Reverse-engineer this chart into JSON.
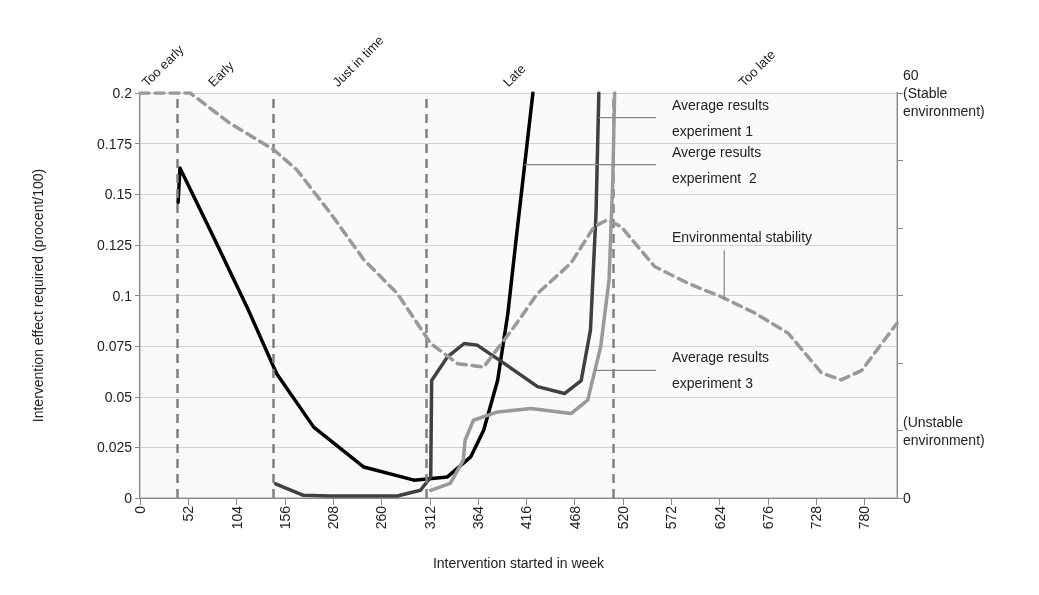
{
  "chart_data": {
    "type": "line",
    "xlabel": "Intervention started in week",
    "ylabel": "Intervention effect required (procent/100)",
    "xlim": [
      0,
      815
    ],
    "xticks": [
      0,
      52,
      104,
      156,
      208,
      260,
      312,
      364,
      416,
      468,
      520,
      572,
      624,
      676,
      728,
      780
    ],
    "ylim": [
      0,
      0.2
    ],
    "yticks": [
      0,
      0.025,
      0.05,
      0.075,
      0.1,
      0.125,
      0.15,
      0.175,
      0.2
    ],
    "y2lim": [
      0,
      60
    ],
    "y2ticks": [
      0,
      {
        "value": 10,
        "label": "(Unstable environment)"
      },
      {
        "value": 20,
        "label": null
      },
      {
        "value": 30,
        "label": null
      },
      {
        "value": 40,
        "label": null
      },
      {
        "value": 50,
        "label": null
      },
      {
        "value": 60,
        "label": "60 (Stable environment)"
      }
    ],
    "grid": "y",
    "marker": "none",
    "series": [
      {
        "color": "#000000",
        "x": [
          41,
          43,
          79,
          115,
          147,
          187,
          241,
          295,
          331,
          356,
          370,
          385,
          396,
          406,
          423
        ],
        "values": [
          0.146,
          0.163,
          0.129,
          0.0945,
          0.0615,
          0.035,
          0.0153,
          0.0088,
          0.0104,
          0.0203,
          0.0335,
          0.058,
          0.091,
          0.132,
          0.2
        ]
      },
      {
        "color": "#404040",
        "x": [
          146,
          176,
          205,
          277,
          302,
          313,
          314,
          331,
          349,
          363,
          392,
          428,
          457,
          475,
          485,
          491,
          494
        ],
        "values": [
          0.007,
          0.0013,
          0.001,
          0.001,
          0.0038,
          0.0104,
          0.058,
          0.0697,
          0.0763,
          0.0755,
          0.0665,
          0.055,
          0.0516,
          0.058,
          0.083,
          0.141,
          0.2
        ]
      },
      {
        "color": "#999999",
        "x": [
          313,
          334,
          348,
          350,
          359,
          385,
          421,
          464,
          482,
          496,
          505,
          509,
          511
        ],
        "values": [
          0.0038,
          0.0072,
          0.0186,
          0.0285,
          0.0384,
          0.0425,
          0.0442,
          0.0417,
          0.0483,
          0.0747,
          0.1077,
          0.157,
          0.2
        ]
      },
      {
        "color": "#999999",
        "axis": "y2",
        "line_style": "dashed",
        "x": [
          0,
          54,
          97,
          144,
          169,
          205,
          241,
          277,
          313,
          342,
          370,
          403,
          428,
          464,
          489,
          503,
          518,
          554,
          590,
          626,
          662,
          698,
          734,
          755,
          777,
          815
        ],
        "values": [
          60,
          60,
          55.5,
          51.6,
          48.6,
          42.2,
          35.3,
          30.3,
          22.9,
          19.9,
          19.4,
          25.4,
          30.3,
          34.8,
          40.2,
          41.2,
          40.2,
          34.3,
          31.8,
          29.8,
          27.4,
          24.4,
          18.5,
          17.5,
          18.9,
          25.9
        ]
      }
    ],
    "ref_lines": [
      {
        "axis": "x",
        "value": 40,
        "color": "#808080",
        "line_style": "dashed"
      },
      {
        "axis": "x",
        "value": 143,
        "color": "#808080",
        "line_style": "dashed"
      },
      {
        "axis": "x",
        "value": 308,
        "color": "#808080",
        "line_style": "dashed"
      },
      {
        "axis": "x",
        "value": 510,
        "color": "#808080",
        "line_style": "dashed"
      }
    ],
    "bands": [
      {
        "axis": "x",
        "from": 0,
        "to": 40,
        "label": "Too early",
        "color": "#f7f7f7"
      },
      {
        "axis": "x",
        "from": 40,
        "to": 143,
        "label": "Early",
        "color": "#f7f7f7"
      },
      {
        "axis": "x",
        "from": 143,
        "to": 308,
        "label": "Just in time",
        "color": "#f7f7f7"
      },
      {
        "axis": "x",
        "from": 308,
        "to": 510,
        "label": "Late",
        "color": "#f7f7f7"
      },
      {
        "axis": "x",
        "from": 510,
        "to": 815,
        "label": "Too late",
        "color": "#f7f7f7"
      }
    ],
    "annotations": [
      {
        "text": "Average results experiment 1",
        "x": 494,
        "y": 0.1878
      },
      {
        "text": "Averge results experiment  2",
        "x": 414,
        "y": 0.1646
      },
      {
        "text": "Average results experiment 3",
        "x": 490,
        "y": 0.063
      },
      {
        "text": "Environmental stability",
        "x": 629,
        "y": 0.0977
      }
    ]
  }
}
